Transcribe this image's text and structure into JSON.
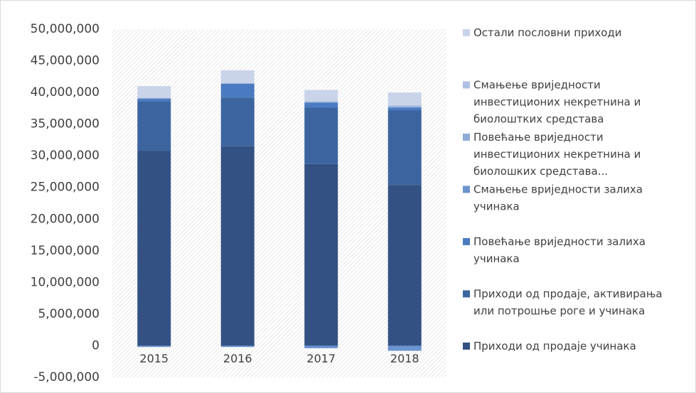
{
  "chart_data": {
    "type": "stacked-bar",
    "categories": [
      "2015",
      "2016",
      "2017",
      "2018"
    ],
    "series": [
      {
        "name": "Приходи од продаје учинака",
        "color": "#335283",
        "values": [
          30800000,
          31500000,
          28700000,
          25400000
        ]
      },
      {
        "name": "Приходи од продаје, активирања или потрошње роге и учинака",
        "color": "#3c65a0",
        "values": [
          7800000,
          7700000,
          8900000,
          11800000
        ]
      },
      {
        "name": "Повећање вриједности залиха учинака",
        "color": "#4a7bc2",
        "values": [
          400000,
          2200000,
          800000,
          400000
        ]
      },
      {
        "name": "Смањење вриједности залиха учинака",
        "color": "#6b93d0",
        "values": [
          -200000,
          -200000,
          -400000,
          -800000
        ]
      },
      {
        "name": "Повећање вриједности инвестиционих некретнина и биолошких средстава...",
        "color": "#8eaad8",
        "values": [
          100000,
          0,
          100000,
          200000
        ]
      },
      {
        "name": "Смањење вриједности инвестиционих некретнина и биолоштких средстава",
        "color": "#adbfe2",
        "values": [
          100000,
          0,
          100000,
          200000
        ]
      },
      {
        "name": "Остали пословни приходи",
        "color": "#c9d4ea",
        "values": [
          1800000,
          2100000,
          1800000,
          2000000
        ]
      }
    ],
    "ylim": [
      -5000000,
      50000000
    ],
    "yticks": [
      {
        "value": -5000000,
        "label": "-5,000,000"
      },
      0,
      {
        "value": 5000000,
        "label": "5,000,000"
      },
      {
        "value": 10000000,
        "label": "10,000,000"
      },
      {
        "value": 15000000,
        "label": "15,000,000"
      },
      {
        "value": 20000000,
        "label": "20,000,000"
      },
      {
        "value": 25000000,
        "label": "25,000,000"
      },
      {
        "value": 30000000,
        "label": "30,000,000"
      },
      {
        "value": 35000000,
        "label": "35,000,000"
      },
      {
        "value": 40000000,
        "label": "40,000,000"
      },
      {
        "value": 45000000,
        "label": "45,000,000"
      },
      {
        "value": 50000000,
        "label": "50,000,000"
      }
    ],
    "grid": false,
    "legend": "right"
  }
}
